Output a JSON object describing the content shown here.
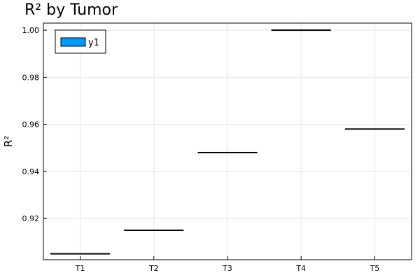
{
  "chart_data": {
    "type": "box",
    "title": "R² by Tumor",
    "xlabel": "",
    "ylabel": "R²",
    "categories": [
      "T1",
      "T2",
      "T3",
      "T4",
      "T5"
    ],
    "values": [
      0.905,
      0.915,
      0.948,
      1.0,
      0.958
    ],
    "ylim": [
      0.9025,
      1.003
    ],
    "yticks": [
      0.92,
      0.94,
      0.96,
      0.98,
      1.0
    ],
    "ytick_labels": [
      "0.92",
      "0.94",
      "0.96",
      "0.98",
      "1.00"
    ],
    "grid": true,
    "legend": {
      "position": "top-left",
      "entries": [
        "y1"
      ]
    },
    "colors": {
      "fill": "#009AF9",
      "stroke": "#000000",
      "grid": "#E5E5E5"
    }
  }
}
